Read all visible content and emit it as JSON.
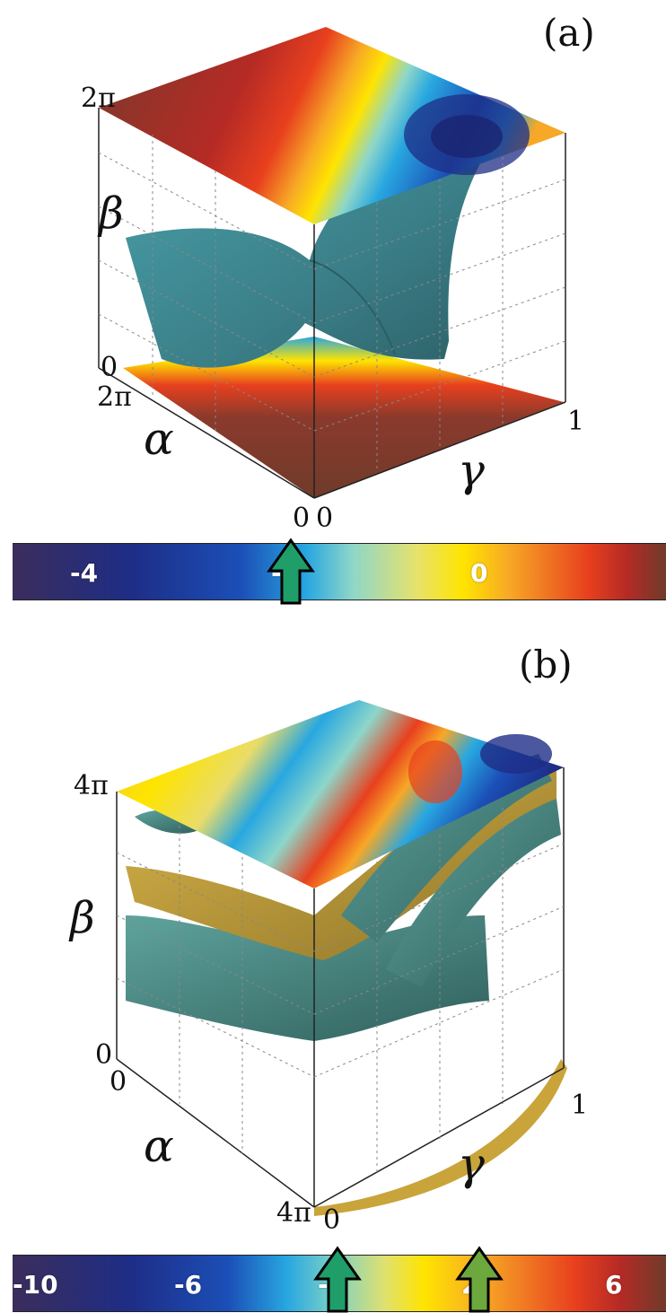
{
  "panel_a": {
    "label": "(a)",
    "axes": {
      "alpha": "α",
      "beta": "β",
      "gamma": "γ"
    },
    "ticks": {
      "beta_top": "2π",
      "beta_bottom": "0",
      "alpha_top": "2π",
      "alpha_bottom": "0",
      "gamma_left": "0",
      "gamma_right": "1"
    },
    "colorbar": {
      "labels": [
        "-4",
        "-2",
        "0"
      ],
      "arrow_values": [
        "-2"
      ],
      "arrow_color": "#1f9e6a"
    }
  },
  "panel_b": {
    "label": "(b)",
    "axes": {
      "alpha": "α",
      "beta": "β",
      "gamma": "γ"
    },
    "ticks": {
      "beta_top": "4π",
      "beta_bottom": "0",
      "alpha_top": "0",
      "alpha_bottom": "4π",
      "gamma_left": "0",
      "gamma_right": "1"
    },
    "colorbar": {
      "labels": [
        "-10",
        "-6",
        "-2",
        "2",
        "6"
      ],
      "arrow_values": [
        "-2",
        "2"
      ],
      "arrow_colors": [
        "#1f9e6a",
        "#6da83f"
      ]
    }
  },
  "colors": {
    "surface_teal": "#3f8a92",
    "surface_gold": "#c9a43a",
    "axis_line": "#222222"
  }
}
